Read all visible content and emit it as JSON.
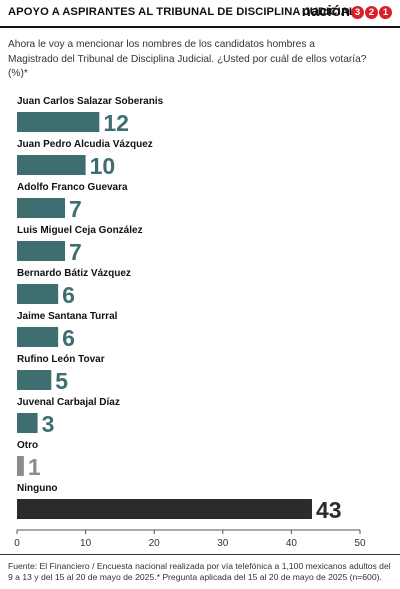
{
  "header": {
    "title": "APOYO A ASPIRANTES AL TRIBUNAL DE DISCIPLINA JUDICIAL",
    "logo_text": "nación",
    "logo_digits": [
      "3",
      "2",
      "1"
    ]
  },
  "question": "Ahora le voy a mencionar los nombres de los candidatos hombres a Magistrado del Tribunal de Disciplina Judicial. ¿Usted por cuál de ellos votaría? (%)*",
  "chart_data": {
    "type": "bar",
    "orientation": "horizontal",
    "categories": [
      "Juan Carlos Salazar Soberanis",
      "Juan Pedro Alcudia Vázquez",
      "Adolfo Franco Guevara",
      "Luis Miguel Ceja González",
      "Bernardo Bátiz Vázquez",
      "Jaime Santana Turral",
      "Rufino León Tovar",
      "Juvenal Carbajal Díaz",
      "Otro",
      "Ninguno"
    ],
    "values": [
      12,
      10,
      7,
      7,
      6,
      6,
      5,
      3,
      1,
      43
    ],
    "value_labels": [
      "12",
      "10",
      "7",
      "7",
      "6",
      "6",
      "5",
      "3",
      "1",
      "43"
    ],
    "xlim": [
      0,
      50
    ],
    "xticks": [
      "0",
      "10",
      "20",
      "30",
      "40",
      "50"
    ],
    "grid": false,
    "colors": {
      "candidate": "#3f6e70",
      "otro": "#8c8c8c",
      "ninguno": "#2b2b2b",
      "candidate_label": "#3f6e70",
      "otro_label": "#8c8c8c",
      "ninguno_label": "#2b2b2b"
    }
  },
  "source": "Fuente: El Financiero / Encuesta nacional realizada por vía telefónica a 1,100 mexicanos adultos del 9 a 13 y del 15 al 20 de mayo de 2025.* Pregunta aplicada del 15 al 20 de mayo de 2025 (n=600)."
}
